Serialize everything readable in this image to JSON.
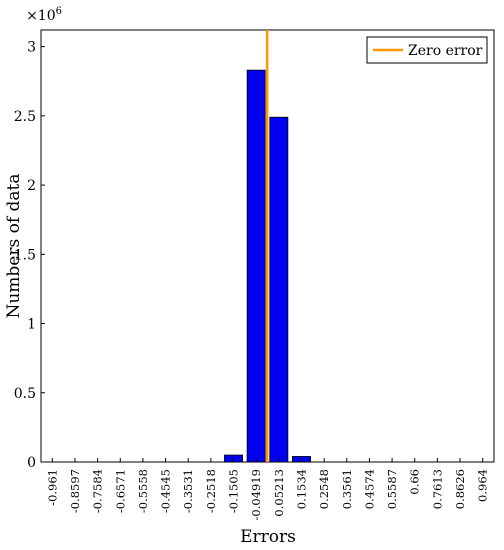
{
  "chart_data": {
    "type": "bar",
    "xlabel": "Errors",
    "ylabel": "Numbers of data",
    "y_multiplier": "×10",
    "y_exponent": "6",
    "ylim": [
      0,
      3.12
    ],
    "y_ticks": [
      0,
      0.5,
      1,
      1.5,
      2,
      2.5,
      3
    ],
    "y_tick_labels": [
      "0",
      "0.5",
      "1",
      "1.5",
      "2",
      "2.5",
      "3"
    ],
    "categories": [
      "-0.961",
      "-0.8597",
      "-0.7584",
      "-0.6571",
      "-0.5558",
      "-0.4545",
      "-0.3531",
      "-0.2518",
      "-0.1505",
      "-0.04919",
      "0.05213",
      "0.1534",
      "0.2548",
      "0.3561",
      "0.4574",
      "0.5587",
      "0.66",
      "0.7613",
      "0.8626",
      "0.964"
    ],
    "values": [
      0,
      0,
      0,
      0,
      0,
      0,
      0,
      0,
      0.05,
      2.83,
      2.49,
      0.04,
      0,
      0,
      0,
      0,
      0,
      0,
      0,
      0
    ],
    "bar_color": "#0000ee",
    "reference_line": {
      "x": 0,
      "label": "Zero error",
      "color": "#ff9900"
    },
    "legend_placement": "top-right",
    "grid": false
  }
}
